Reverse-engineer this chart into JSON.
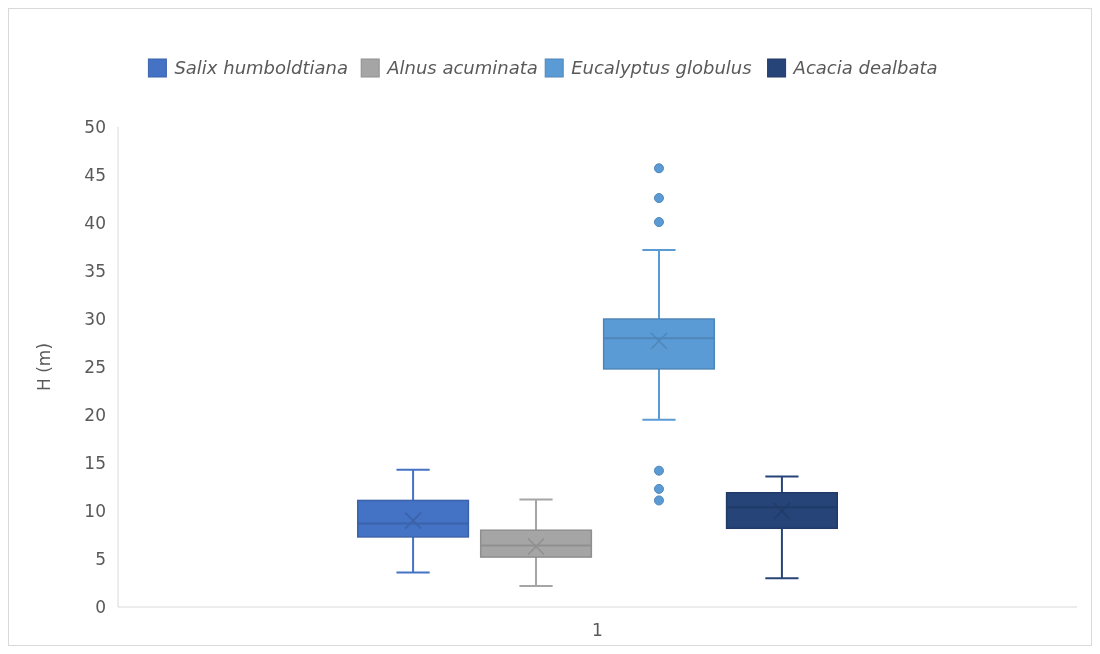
{
  "chart_data": {
    "type": "box",
    "ylabel": "H (m)",
    "categories": [
      "1"
    ],
    "ylim": [
      0,
      50
    ],
    "yticks": [
      0,
      5,
      10,
      15,
      20,
      25,
      30,
      35,
      40,
      45,
      50
    ],
    "grid": false,
    "legend": "top",
    "series": [
      {
        "name": "Salix humboldtiana",
        "color": "#4472c4",
        "boxes": [
          {
            "low": 3.6,
            "q1": 7.3,
            "median": 8.7,
            "q3": 11.1,
            "high": 14.3,
            "mean": 9.0
          }
        ]
      },
      {
        "name": "Alnus acuminata",
        "color": "#a5a5a5",
        "boxes": [
          {
            "low": 2.2,
            "q1": 5.2,
            "median": 6.4,
            "q3": 8.0,
            "high": 11.2,
            "mean": 6.3
          }
        ]
      },
      {
        "name": "Eucalyptus globulus",
        "color": "#5b9bd5",
        "boxes": [
          {
            "low": 19.5,
            "q1": 24.8,
            "median": 28.0,
            "q3": 30.0,
            "high": 37.2,
            "mean": 27.7,
            "outliers": [
              45.7,
              42.6,
              40.1,
              14.2,
              12.3,
              11.1
            ]
          }
        ]
      },
      {
        "name": "Acacia dealbata",
        "color": "#264478",
        "boxes": [
          {
            "low": 3.0,
            "q1": 8.2,
            "median": 10.4,
            "q3": 11.9,
            "high": 13.6,
            "mean": 10.0
          }
        ]
      }
    ]
  }
}
